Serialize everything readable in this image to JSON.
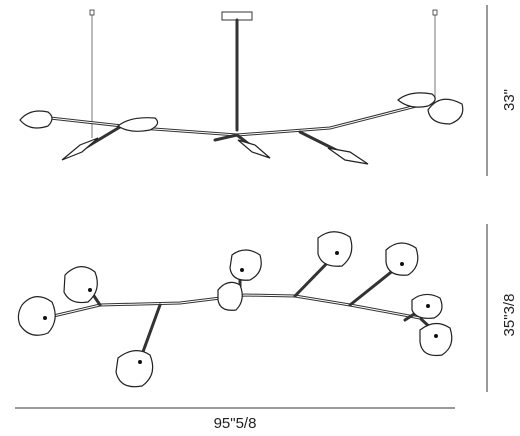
{
  "dimensions": {
    "height": "33\"",
    "depth": "35\"3/8",
    "width": "95\"5/8"
  }
}
